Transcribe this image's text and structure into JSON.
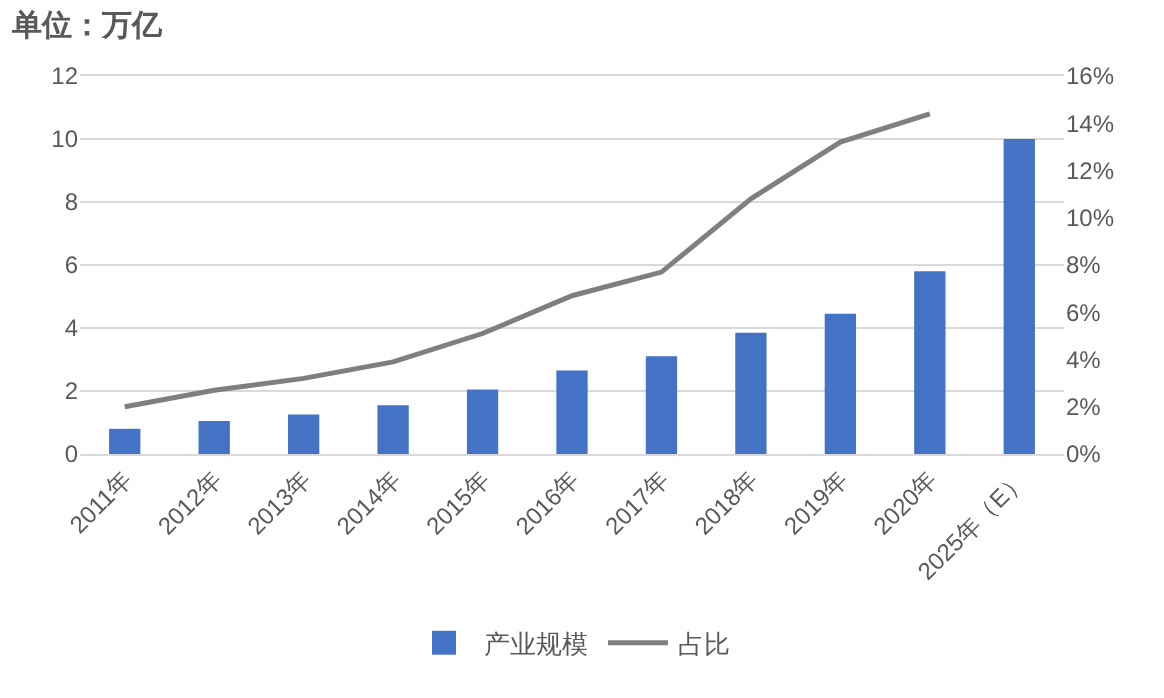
{
  "chart_data": {
    "type": "bar",
    "title": "单位：万亿",
    "categories": [
      "2011年",
      "2012年",
      "2013年",
      "2014年",
      "2015年",
      "2016年",
      "2017年",
      "2018年",
      "2019年",
      "2020年",
      "2025年（E）"
    ],
    "series": [
      {
        "name": "产业规模",
        "color": "#4472c4",
        "values": [
          0.8,
          1.05,
          1.25,
          1.55,
          2.05,
          2.65,
          3.1,
          3.85,
          4.45,
          5.8,
          10
        ]
      },
      {
        "name": "占比",
        "type": "line",
        "axis": "y2",
        "color": "#7f7f7f",
        "values": [
          2.0,
          2.7,
          3.2,
          3.9,
          5.1,
          6.7,
          7.7,
          10.8,
          13.2,
          14.4,
          null
        ]
      }
    ],
    "ylim": [
      0,
      12
    ],
    "yticks": [
      0,
      2,
      4,
      6,
      8,
      10,
      12
    ],
    "y2lim": [
      0,
      16
    ],
    "y2ticks": [
      {
        "value": 0,
        "label": "0%"
      },
      {
        "value": 2,
        "label": "2%"
      },
      {
        "value": 4,
        "label": "4%"
      },
      {
        "value": 6,
        "label": "6%"
      },
      {
        "value": 8,
        "label": "8%"
      },
      {
        "value": 10,
        "label": "10%"
      },
      {
        "value": 12,
        "label": "12%"
      },
      {
        "value": 14,
        "label": "14%"
      },
      {
        "value": 16,
        "label": "16%"
      }
    ],
    "grid": "y",
    "legend": "bottom",
    "marker": "none",
    "line_style": "solid"
  }
}
